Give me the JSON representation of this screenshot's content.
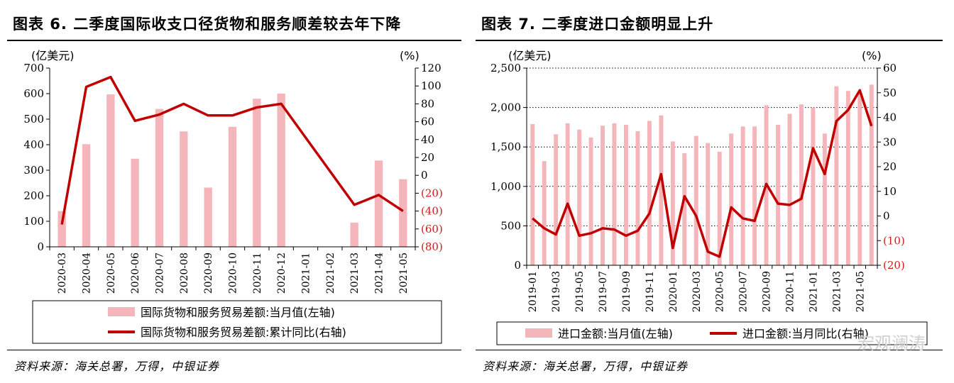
{
  "left": {
    "title": "图表 6. 二季度国际收支口径货物和服务顺差较去年下降",
    "source": "资料来源：海关总署，万得，中银证券",
    "left_unit": "(亿美元)",
    "right_unit": "(%)",
    "chart_data": {
      "type": "bar+line",
      "categories": [
        "2020-03",
        "2020-04",
        "2020-05",
        "2020-06",
        "2020-07",
        "2020-08",
        "2020-09",
        "2020-10",
        "2020-11",
        "2020-12",
        "2021-01",
        "2021-02",
        "2021-03",
        "2021-04",
        "2021-05"
      ],
      "series": [
        {
          "name": "国际货物和服务贸易差额:当月值(左轴)",
          "kind": "bar",
          "axis": "left",
          "values": [
            140,
            402,
            597,
            345,
            540,
            452,
            232,
            470,
            580,
            600,
            null,
            null,
            95,
            338,
            265
          ]
        },
        {
          "name": "国际货物和服务贸易差额:累计同比(右轴)",
          "kind": "line",
          "axis": "right",
          "values": [
            -55,
            99,
            110,
            61,
            68,
            80,
            67,
            67,
            76,
            80,
            null,
            null,
            -33,
            -22,
            -40
          ]
        }
      ],
      "yleft": {
        "min": 0,
        "max": 700,
        "ticks": [
          0,
          100,
          200,
          300,
          400,
          500,
          600,
          700
        ],
        "tick_labels": [
          "0",
          "100",
          "200",
          "300",
          "400",
          "500",
          "600",
          "700"
        ]
      },
      "yright": {
        "min": -80,
        "max": 120,
        "ticks": [
          120,
          100,
          80,
          60,
          40,
          20,
          0,
          -20,
          -40,
          -60,
          -80
        ],
        "tick_labels": [
          "120",
          "100",
          "80",
          "60",
          "40",
          "20",
          "0",
          "(20)",
          "(40)",
          "(60)",
          "(80)"
        ]
      },
      "colors": {
        "bar": "#f4b6bb",
        "line": "#c00000",
        "negative_tick": "#d11a1a"
      }
    }
  },
  "right": {
    "title": "图表 7. 二季度进口金额明显上升",
    "source": "资料来源：海关总署，万得，中银证券",
    "left_unit": "(亿美元)",
    "right_unit": "(%)",
    "chart_data": {
      "type": "bar+line",
      "categories": [
        "2019-01",
        "2019-02",
        "2019-03",
        "2019-04",
        "2019-05",
        "2019-06",
        "2019-07",
        "2019-08",
        "2019-09",
        "2019-10",
        "2019-11",
        "2019-12",
        "2020-01",
        "2020-02",
        "2020-03",
        "2020-04",
        "2020-05",
        "2020-06",
        "2020-07",
        "2020-08",
        "2020-09",
        "2020-10",
        "2020-11",
        "2020-12",
        "2021-01",
        "2021-02",
        "2021-03",
        "2021-04",
        "2021-05",
        "2021-06"
      ],
      "x_tick_labels": [
        "2019-01",
        "2019-03",
        "2019-05",
        "2019-07",
        "2019-09",
        "2019-11",
        "2020-01",
        "2020-03",
        "2020-05",
        "2020-07",
        "2020-09",
        "2020-11",
        "2021-01",
        "2021-03",
        "2021-05"
      ],
      "series": [
        {
          "name": "进口金额:当月值(左轴)",
          "kind": "bar",
          "axis": "left",
          "values": [
            1790,
            1320,
            1660,
            1800,
            1720,
            1620,
            1770,
            1800,
            1780,
            1700,
            1830,
            1900,
            1570,
            1420,
            1640,
            1550,
            1440,
            1670,
            1760,
            1760,
            2030,
            1780,
            1920,
            2040,
            2000,
            1670,
            2270,
            2210,
            2190,
            2290
          ]
        },
        {
          "name": "进口金额:当月同比(右轴)",
          "kind": "line",
          "axis": "right",
          "values": [
            -1,
            -5,
            -7.5,
            5,
            -8,
            -7,
            -5,
            -5.5,
            -8,
            -6,
            1,
            17,
            -13,
            8,
            0,
            -14.5,
            -16.5,
            3.5,
            -1,
            -2,
            13,
            5,
            4.5,
            7,
            27.5,
            17,
            38.5,
            43,
            51,
            36.5
          ]
        }
      ],
      "yleft": {
        "min": 0,
        "max": 2500,
        "ticks": [
          0,
          500,
          1000,
          1500,
          2000,
          2500
        ],
        "tick_labels": [
          "0",
          "500",
          "1,000",
          "1,500",
          "2,000",
          "2,500"
        ]
      },
      "yright": {
        "min": -20,
        "max": 60,
        "ticks": [
          60,
          50,
          40,
          30,
          20,
          10,
          0,
          -10,
          -20
        ],
        "tick_labels": [
          "60",
          "50",
          "40",
          "30",
          "20",
          "10",
          "0",
          "(10)",
          "(20)"
        ]
      },
      "colors": {
        "bar": "#f4b6bb",
        "line": "#c00000",
        "negative_tick": "#d11a1a"
      }
    }
  },
  "watermark": "宏观澜涛"
}
